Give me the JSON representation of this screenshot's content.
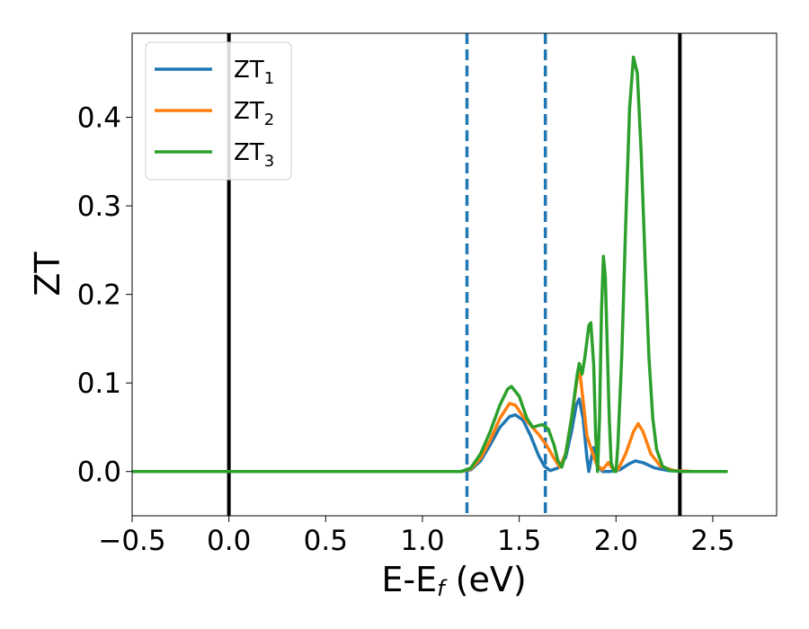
{
  "chart_data": {
    "type": "line",
    "xlabel": "E-E",
    "xlabel_sub": "f",
    "xlabel_unit": "(eV)",
    "ylabel": "ZT",
    "xlim": [
      -0.5,
      2.83
    ],
    "ylim": [
      -0.05,
      0.495
    ],
    "x_ticks": [
      -0.5,
      0.0,
      0.5,
      1.0,
      1.5,
      2.0,
      2.5
    ],
    "x_tick_labels": [
      "−0.5",
      "0.0",
      "0.5",
      "1.0",
      "1.5",
      "2.0",
      "2.5"
    ],
    "y_ticks": [
      0.0,
      0.1,
      0.2,
      0.3,
      0.4
    ],
    "y_tick_labels": [
      "0.0",
      "0.1",
      "0.2",
      "0.3",
      "0.4"
    ],
    "grid": false,
    "legend_position": "top-left",
    "vertical_lines": [
      {
        "x": 0.0,
        "style": "solid",
        "color": "#000000"
      },
      {
        "x": 2.33,
        "style": "solid",
        "color": "#000000"
      },
      {
        "x": 1.23,
        "style": "dashed",
        "color": "#1f77b4"
      },
      {
        "x": 1.635,
        "style": "dashed",
        "color": "#1f77b4"
      }
    ],
    "series": [
      {
        "name": "ZT",
        "sub": "1",
        "color": "#1f77b4",
        "points": [
          [
            -0.5,
            0
          ],
          [
            1.2,
            0
          ],
          [
            1.25,
            0.002
          ],
          [
            1.3,
            0.012
          ],
          [
            1.35,
            0.03
          ],
          [
            1.4,
            0.05
          ],
          [
            1.45,
            0.062
          ],
          [
            1.48,
            0.064
          ],
          [
            1.52,
            0.058
          ],
          [
            1.56,
            0.04
          ],
          [
            1.6,
            0.018
          ],
          [
            1.63,
            0.006
          ],
          [
            1.66,
            0.001
          ],
          [
            1.7,
            0.004
          ],
          [
            1.74,
            0.016
          ],
          [
            1.77,
            0.045
          ],
          [
            1.795,
            0.075
          ],
          [
            1.81,
            0.082
          ],
          [
            1.83,
            0.06
          ],
          [
            1.85,
            0.015
          ],
          [
            1.86,
            0.0
          ],
          [
            1.875,
            0.018
          ],
          [
            1.885,
            0.027
          ],
          [
            1.9,
            0.008
          ],
          [
            1.93,
            0.0
          ],
          [
            1.97,
            0.0
          ],
          [
            2.02,
            0.002
          ],
          [
            2.07,
            0.009
          ],
          [
            2.1,
            0.012
          ],
          [
            2.14,
            0.01
          ],
          [
            2.2,
            0.004
          ],
          [
            2.27,
            0.001
          ],
          [
            2.35,
            0
          ],
          [
            2.57,
            0
          ]
        ]
      },
      {
        "name": "ZT",
        "sub": "2",
        "color": "#ff7f0e",
        "points": [
          [
            -0.5,
            0
          ],
          [
            1.2,
            0
          ],
          [
            1.25,
            0.003
          ],
          [
            1.3,
            0.015
          ],
          [
            1.35,
            0.035
          ],
          [
            1.4,
            0.06
          ],
          [
            1.45,
            0.077
          ],
          [
            1.48,
            0.075
          ],
          [
            1.52,
            0.062
          ],
          [
            1.56,
            0.052
          ],
          [
            1.6,
            0.042
          ],
          [
            1.64,
            0.03
          ],
          [
            1.68,
            0.015
          ],
          [
            1.71,
            0.005
          ],
          [
            1.74,
            0.02
          ],
          [
            1.77,
            0.06
          ],
          [
            1.8,
            0.105
          ],
          [
            1.812,
            0.115
          ],
          [
            1.83,
            0.08
          ],
          [
            1.85,
            0.04
          ],
          [
            1.865,
            0.03
          ],
          [
            1.88,
            0.02
          ],
          [
            1.9,
            0.008
          ],
          [
            1.93,
            0.002
          ],
          [
            1.96,
            0.01
          ],
          [
            1.98,
            0.004
          ],
          [
            2.01,
            0.002
          ],
          [
            2.05,
            0.02
          ],
          [
            2.09,
            0.045
          ],
          [
            2.115,
            0.054
          ],
          [
            2.14,
            0.045
          ],
          [
            2.18,
            0.02
          ],
          [
            2.23,
            0.006
          ],
          [
            2.3,
            0.001
          ],
          [
            2.4,
            0
          ],
          [
            2.57,
            0
          ]
        ]
      },
      {
        "name": "ZT",
        "sub": "3",
        "color": "#2ca02c",
        "points": [
          [
            -0.5,
            0
          ],
          [
            1.2,
            0
          ],
          [
            1.25,
            0.004
          ],
          [
            1.3,
            0.02
          ],
          [
            1.35,
            0.045
          ],
          [
            1.4,
            0.075
          ],
          [
            1.44,
            0.093
          ],
          [
            1.46,
            0.096
          ],
          [
            1.5,
            0.085
          ],
          [
            1.54,
            0.06
          ],
          [
            1.57,
            0.05
          ],
          [
            1.6,
            0.052
          ],
          [
            1.62,
            0.053
          ],
          [
            1.65,
            0.048
          ],
          [
            1.68,
            0.03
          ],
          [
            1.7,
            0.012
          ],
          [
            1.72,
            0.005
          ],
          [
            1.74,
            0.02
          ],
          [
            1.77,
            0.06
          ],
          [
            1.8,
            0.11
          ],
          [
            1.81,
            0.122
          ],
          [
            1.825,
            0.11
          ],
          [
            1.84,
            0.13
          ],
          [
            1.86,
            0.165
          ],
          [
            1.87,
            0.168
          ],
          [
            1.885,
            0.12
          ],
          [
            1.895,
            0.04
          ],
          [
            1.905,
            0.0
          ],
          [
            1.915,
            0.06
          ],
          [
            1.925,
            0.18
          ],
          [
            1.935,
            0.243
          ],
          [
            1.945,
            0.22
          ],
          [
            1.955,
            0.14
          ],
          [
            1.965,
            0.06
          ],
          [
            1.975,
            0.01
          ],
          [
            1.99,
            0.0
          ],
          [
            2.0,
            0.0
          ],
          [
            2.01,
            0.03
          ],
          [
            2.03,
            0.13
          ],
          [
            2.05,
            0.28
          ],
          [
            2.07,
            0.41
          ],
          [
            2.09,
            0.468
          ],
          [
            2.11,
            0.45
          ],
          [
            2.13,
            0.36
          ],
          [
            2.15,
            0.24
          ],
          [
            2.17,
            0.13
          ],
          [
            2.19,
            0.06
          ],
          [
            2.21,
            0.025
          ],
          [
            2.24,
            0.006
          ],
          [
            2.28,
            0.001
          ],
          [
            2.35,
            0
          ],
          [
            2.57,
            0
          ]
        ]
      }
    ]
  }
}
